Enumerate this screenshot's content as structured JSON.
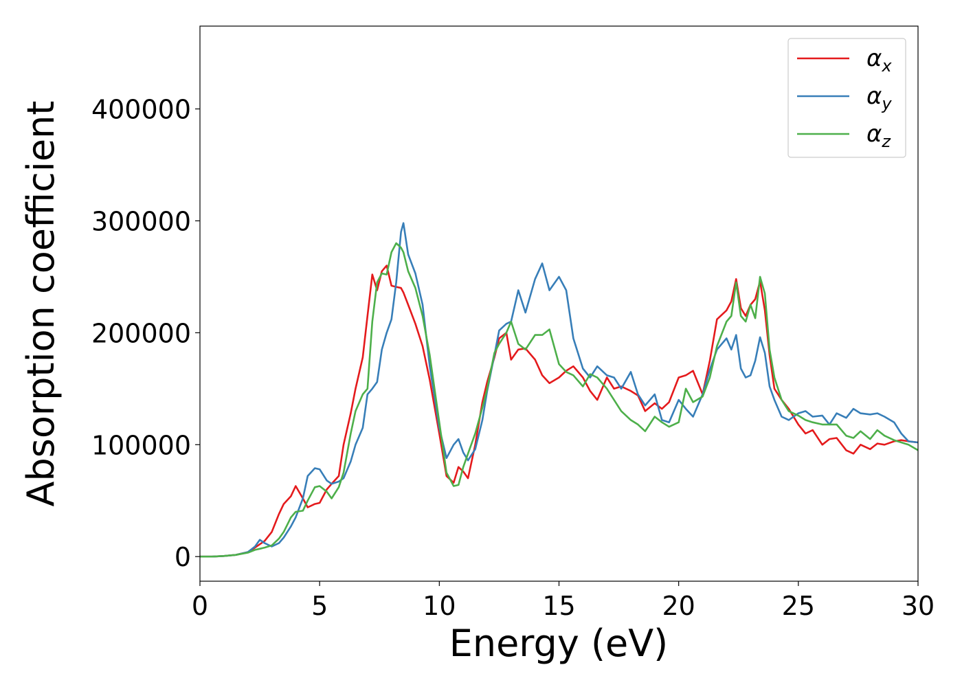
{
  "chart_data": {
    "type": "line",
    "xlabel": "Energy (eV)",
    "ylabel": "Absorption coefficient",
    "xlim": [
      0,
      30
    ],
    "ylim": [
      -22000,
      474000
    ],
    "xticks": [
      "0",
      "5",
      "10",
      "15",
      "20",
      "25",
      "30"
    ],
    "yticks": [
      "0",
      "100000",
      "200000",
      "300000",
      "400000"
    ],
    "grid": false,
    "legend_position": "top-right",
    "x": [
      0,
      0.5,
      1,
      1.5,
      2,
      2.3,
      2.5,
      2.7,
      3,
      3.3,
      3.5,
      3.8,
      4,
      4.3,
      4.5,
      4.8,
      5,
      5.3,
      5.5,
      5.8,
      6,
      6.3,
      6.5,
      6.8,
      7,
      7.2,
      7.4,
      7.6,
      7.8,
      8,
      8.2,
      8.4,
      8.5,
      8.7,
      9,
      9.3,
      9.6,
      10,
      10.3,
      10.6,
      10.8,
      11,
      11.2,
      11.5,
      11.8,
      12,
      12.3,
      12.5,
      12.8,
      13,
      13.3,
      13.6,
      14,
      14.3,
      14.6,
      15,
      15.3,
      15.6,
      16,
      16.3,
      16.6,
      17,
      17.3,
      17.6,
      18,
      18.3,
      18.6,
      19,
      19.3,
      19.6,
      20,
      20.3,
      20.6,
      21,
      21.3,
      21.6,
      22,
      22.2,
      22.4,
      22.6,
      22.8,
      23,
      23.2,
      23.4,
      23.6,
      23.8,
      24,
      24.3,
      24.6,
      25,
      25.3,
      25.6,
      26,
      26.3,
      26.6,
      27,
      27.3,
      27.6,
      28,
      28.3,
      28.6,
      29,
      29.3,
      29.6,
      30
    ],
    "series": [
      {
        "name": "α_x",
        "color": "#e41a1c",
        "values": [
          0,
          0,
          500,
          1500,
          4000,
          8000,
          11000,
          14000,
          22000,
          38000,
          47000,
          54000,
          63000,
          52000,
          44000,
          47000,
          48000,
          60000,
          65000,
          72000,
          100000,
          128000,
          150000,
          178000,
          215000,
          252000,
          238000,
          255000,
          260000,
          242000,
          241000,
          240000,
          236000,
          225000,
          208000,
          188000,
          158000,
          110000,
          72000,
          66000,
          80000,
          76000,
          70000,
          100000,
          138000,
          156000,
          178000,
          195000,
          200000,
          176000,
          185000,
          186000,
          176000,
          162000,
          155000,
          160000,
          166000,
          170000,
          160000,
          148000,
          140000,
          160000,
          150000,
          152000,
          148000,
          144000,
          130000,
          137000,
          132000,
          138000,
          160000,
          162000,
          166000,
          145000,
          175000,
          212000,
          220000,
          228000,
          248000,
          222000,
          215000,
          225000,
          230000,
          246000,
          220000,
          180000,
          150000,
          140000,
          132000,
          118000,
          110000,
          113000,
          100000,
          105000,
          106000,
          95000,
          92000,
          100000,
          96000,
          101000,
          100000,
          103000,
          104000,
          103000,
          102000
        ],
        "hide_legend_label": true
      },
      {
        "name": "α_y",
        "color": "#377eb8",
        "values": [
          0,
          0,
          500,
          1500,
          4000,
          9000,
          15000,
          12000,
          9000,
          12000,
          17000,
          27000,
          35000,
          52000,
          72000,
          79000,
          78000,
          68000,
          65000,
          67000,
          70000,
          85000,
          100000,
          115000,
          145000,
          150000,
          156000,
          185000,
          200000,
          212000,
          245000,
          290000,
          298000,
          270000,
          253000,
          225000,
          170000,
          115000,
          88000,
          100000,
          105000,
          93000,
          86000,
          96000,
          122000,
          148000,
          180000,
          202000,
          208000,
          210000,
          238000,
          218000,
          248000,
          262000,
          238000,
          250000,
          238000,
          195000,
          168000,
          160000,
          170000,
          162000,
          160000,
          150000,
          165000,
          145000,
          135000,
          145000,
          122000,
          120000,
          140000,
          132000,
          125000,
          145000,
          167000,
          185000,
          195000,
          185000,
          198000,
          168000,
          160000,
          162000,
          175000,
          196000,
          182000,
          152000,
          140000,
          125000,
          122000,
          128000,
          130000,
          125000,
          126000,
          118000,
          128000,
          124000,
          132000,
          128000,
          127000,
          128000,
          125000,
          120000,
          110000,
          103000,
          102000
        ],
        "hide_legend_label": true
      },
      {
        "name": "α_z",
        "color": "#4daf4a",
        "values": [
          0,
          0,
          500,
          1500,
          3500,
          6000,
          7000,
          8000,
          10000,
          16000,
          22000,
          35000,
          40000,
          41000,
          50000,
          62000,
          63000,
          58000,
          52000,
          62000,
          75000,
          110000,
          130000,
          145000,
          150000,
          210000,
          245000,
          253000,
          252000,
          272000,
          280000,
          276000,
          272000,
          255000,
          240000,
          215000,
          180000,
          120000,
          75000,
          63000,
          64000,
          80000,
          92000,
          110000,
          133000,
          150000,
          182000,
          190000,
          200000,
          210000,
          190000,
          185000,
          198000,
          198000,
          203000,
          172000,
          165000,
          162000,
          152000,
          163000,
          160000,
          150000,
          140000,
          130000,
          122000,
          118000,
          112000,
          125000,
          120000,
          116000,
          120000,
          150000,
          138000,
          143000,
          160000,
          188000,
          210000,
          215000,
          245000,
          215000,
          210000,
          225000,
          213000,
          250000,
          235000,
          185000,
          160000,
          140000,
          130000,
          126000,
          122000,
          120000,
          118000,
          118000,
          118000,
          108000,
          106000,
          112000,
          105000,
          113000,
          108000,
          104000,
          102000,
          100000,
          95000
        ],
        "hide_legend_label": true
      }
    ],
    "legend": [
      {
        "symbol": "α",
        "subscript": "x",
        "color": "#e41a1c"
      },
      {
        "symbol": "α",
        "subscript": "y",
        "color": "#377eb8"
      },
      {
        "symbol": "α",
        "subscript": "z",
        "color": "#4daf4a"
      }
    ]
  }
}
